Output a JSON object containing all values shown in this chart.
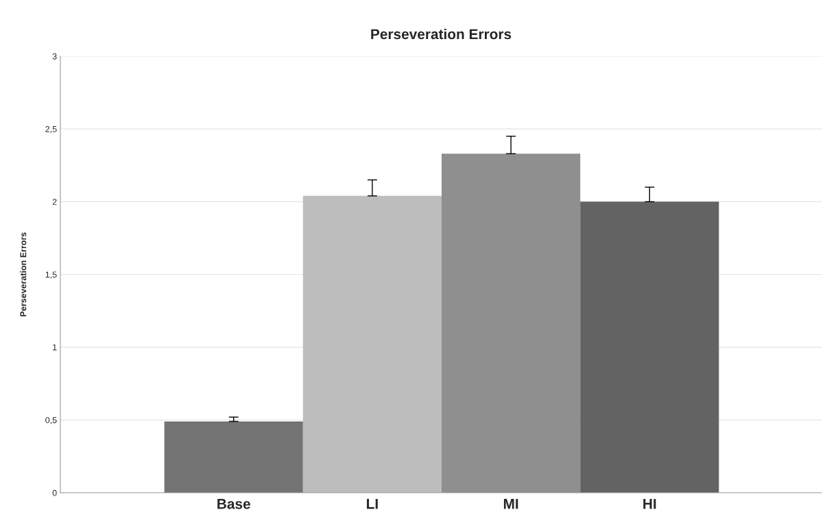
{
  "chart_data": {
    "type": "bar",
    "title": "Perseveration Errors",
    "ylabel": "Perseveration Errors",
    "categories": [
      "Base",
      "LI",
      "MI",
      "HI"
    ],
    "values": [
      0.49,
      2.04,
      2.33,
      2.0
    ],
    "colors": [
      "#737373",
      "#bdbdbd",
      "#8f8f8f",
      "#636363"
    ],
    "errors": [
      [
        0.49,
        0.52
      ],
      [
        2.04,
        2.15
      ],
      [
        2.33,
        2.45
      ],
      [
        2.0,
        2.1
      ]
    ],
    "ylim": [
      0,
      3
    ],
    "yticks": [
      0,
      {
        "value": 0.5,
        "label": "0,5"
      },
      1,
      {
        "value": 1.5,
        "label": "1,5"
      },
      2,
      {
        "value": 2.5,
        "label": "2,5"
      },
      3
    ],
    "grid": "y"
  }
}
